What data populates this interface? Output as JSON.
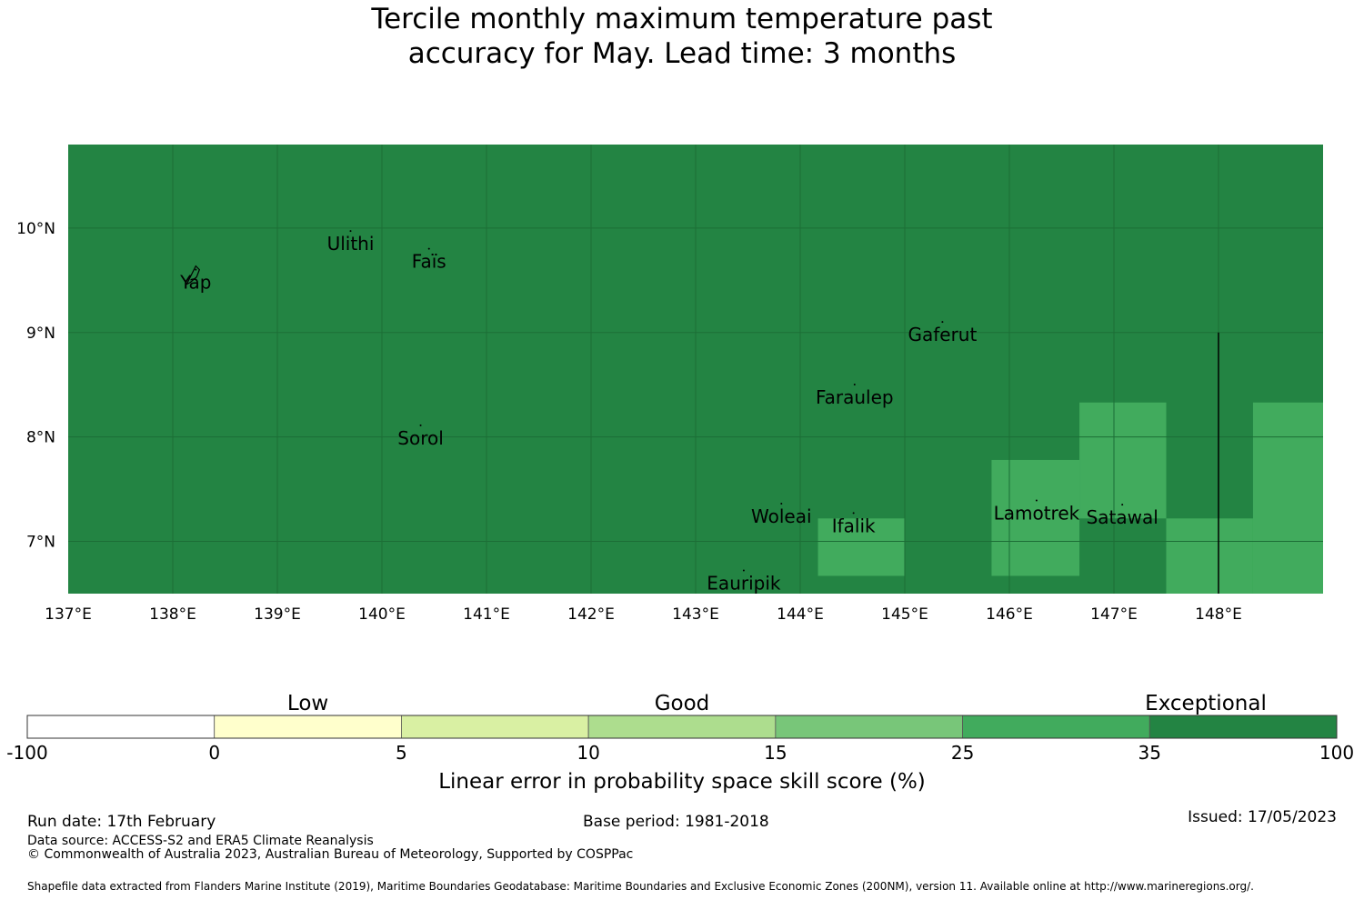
{
  "title": {
    "line1": "Tercile monthly maximum temperature past",
    "line2": "accuracy for May. Lead time: 3 months"
  },
  "map": {
    "lon_ticks": [
      "137°E",
      "138°E",
      "139°E",
      "140°E",
      "141°E",
      "142°E",
      "143°E",
      "144°E",
      "145°E",
      "146°E",
      "147°E",
      "148°E"
    ],
    "lat_ticks": [
      "10°N",
      "9°N",
      "8°N",
      "7°N"
    ],
    "lon_range": [
      137,
      149
    ],
    "lat_range": [
      6.5,
      10.8
    ],
    "background_color": "#238443",
    "grid_color": "#1c6e36",
    "cells": [
      {
        "lon": [
          144.17,
          145.0
        ],
        "lat": [
          6.67,
          7.22
        ],
        "color": "#41ab5d"
      },
      {
        "lon": [
          145.83,
          146.67
        ],
        "lat": [
          6.67,
          7.78
        ],
        "color": "#41ab5d"
      },
      {
        "lon": [
          146.67,
          147.5
        ],
        "lat": [
          7.22,
          8.33
        ],
        "color": "#41ab5d"
      },
      {
        "lon": [
          147.5,
          148.33
        ],
        "lat": [
          6.5,
          7.22
        ],
        "color": "#41ab5d"
      },
      {
        "lon": [
          148.33,
          149.0
        ],
        "lat": [
          6.5,
          8.33
        ],
        "color": "#41ab5d"
      }
    ],
    "boundary_line": {
      "lon": 148.0,
      "lat": [
        6.5,
        9.0
      ]
    },
    "places": [
      {
        "name": "Ulithi",
        "lon": 139.7,
        "lat": 9.85
      },
      {
        "name": "Faïs",
        "lon": 140.45,
        "lat": 9.68
      },
      {
        "name": "Yap",
        "lon": 138.22,
        "lat": 9.48
      },
      {
        "name": "Gaferut",
        "lon": 145.36,
        "lat": 8.98
      },
      {
        "name": "Faraulep",
        "lon": 144.52,
        "lat": 8.38
      },
      {
        "name": "Sorol",
        "lon": 140.37,
        "lat": 7.99
      },
      {
        "name": "Woleai",
        "lon": 143.82,
        "lat": 7.24
      },
      {
        "name": "Ifalik",
        "lon": 144.51,
        "lat": 7.15
      },
      {
        "name": "Lamotrek",
        "lon": 146.26,
        "lat": 7.27
      },
      {
        "name": "Satawal",
        "lon": 147.08,
        "lat": 7.23
      },
      {
        "name": "Eauripik",
        "lon": 143.46,
        "lat": 6.6
      }
    ]
  },
  "colorbar": {
    "category_labels": [
      "Low",
      "Good",
      "Exceptional"
    ],
    "bins": [
      {
        "from": "-100",
        "to": "0",
        "color": "#ffffff"
      },
      {
        "from": "0",
        "to": "5",
        "color": "#ffffcc"
      },
      {
        "from": "5",
        "to": "10",
        "color": "#d9f0a3"
      },
      {
        "from": "10",
        "to": "15",
        "color": "#addd8e"
      },
      {
        "from": "15",
        "to": "25",
        "color": "#78c679"
      },
      {
        "from": "25",
        "to": "35",
        "color": "#41ab5d"
      },
      {
        "from": "35",
        "to": "100",
        "color": "#238443"
      }
    ],
    "tick_labels": [
      "-100",
      "0",
      "5",
      "10",
      "15",
      "25",
      "35",
      "100"
    ],
    "title": "Linear error in probability space skill score (%)"
  },
  "footer": {
    "run_date": "Run date: 17th February",
    "base_period": "Base period: 1981-2018",
    "issued": "Issued: 17/05/2023",
    "data_source": "Data source: ACCESS-S2 and ERA5 Climate Reanalysis",
    "copyright": "© Commonwealth of Australia 2023, Australian Bureau of Meteorology, Supported by COSPPac",
    "shapefile": "Shapefile data extracted from Flanders Marine Institute (2019), Maritime Boundaries Geodatabase: Maritime Boundaries and Exclusive Economic Zones (200NM), version 11. Available online at http://www.marineregions.org/."
  }
}
